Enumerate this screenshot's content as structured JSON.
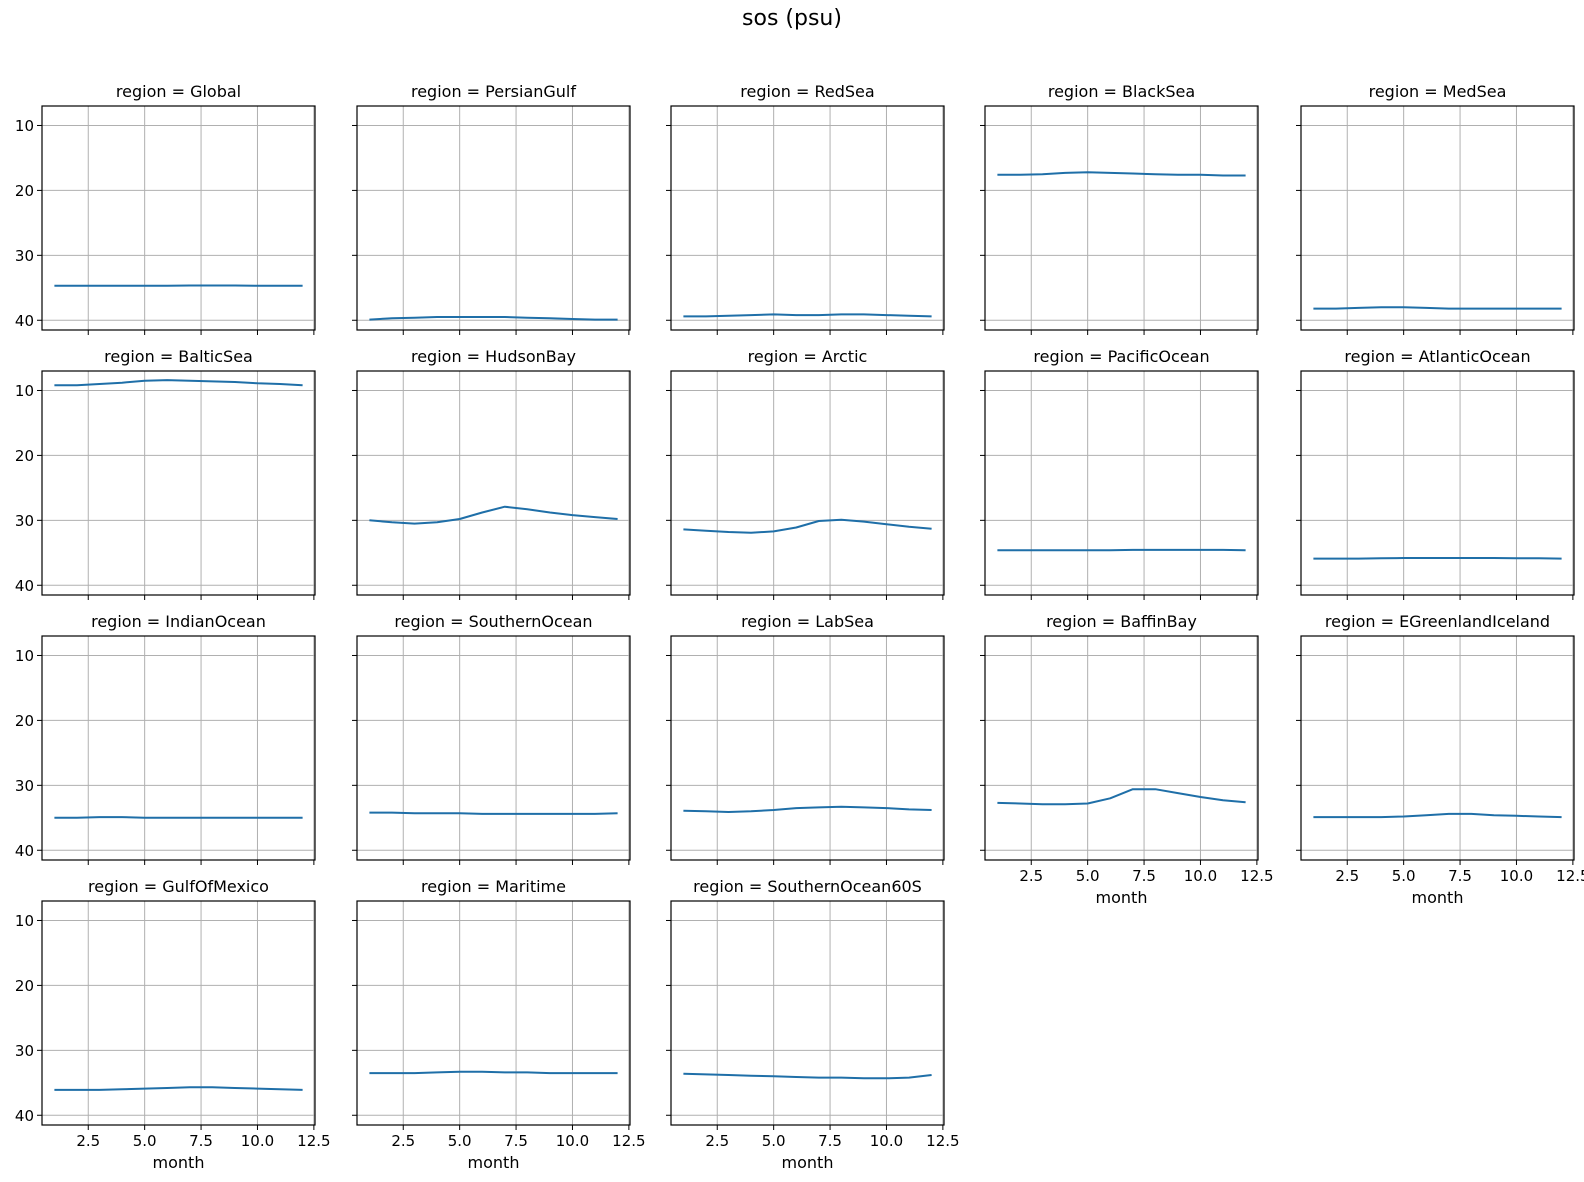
{
  "title": "sos (psu)",
  "chart_data": {
    "type": "line",
    "title": "sos (psu)",
    "facet_prefix": "region = ",
    "columns": 5,
    "xlabel": "month",
    "ylabel": "",
    "xlim": [
      0.45,
      12.55
    ],
    "ylim": [
      41.5,
      7.0
    ],
    "y_inverted": true,
    "xticks": [
      2.5,
      5.0,
      7.5,
      10.0,
      12.5
    ],
    "xtick_labels": [
      "2.5",
      "5.0",
      "7.5",
      "10.0",
      "12.5"
    ],
    "yticks": [
      10,
      20,
      30,
      40
    ],
    "ytick_labels": [
      "10",
      "20",
      "30",
      "40"
    ],
    "grid": true,
    "line_color": "#1f6fa8",
    "x": [
      1,
      2,
      3,
      4,
      5,
      6,
      7,
      8,
      9,
      10,
      11,
      12
    ],
    "series": [
      {
        "name": "Global",
        "values": [
          34.7,
          34.7,
          34.7,
          34.7,
          34.7,
          34.7,
          34.65,
          34.65,
          34.65,
          34.7,
          34.7,
          34.7
        ]
      },
      {
        "name": "PersianGulf",
        "values": [
          39.9,
          39.7,
          39.6,
          39.5,
          39.5,
          39.5,
          39.5,
          39.6,
          39.7,
          39.8,
          39.9,
          39.9
        ]
      },
      {
        "name": "RedSea",
        "values": [
          39.4,
          39.4,
          39.3,
          39.2,
          39.1,
          39.2,
          39.2,
          39.1,
          39.1,
          39.2,
          39.3,
          39.4
        ]
      },
      {
        "name": "BlackSea",
        "values": [
          17.6,
          17.6,
          17.5,
          17.3,
          17.2,
          17.3,
          17.4,
          17.5,
          17.6,
          17.6,
          17.7,
          17.7
        ]
      },
      {
        "name": "MedSea",
        "values": [
          38.2,
          38.2,
          38.1,
          38.0,
          38.0,
          38.1,
          38.2,
          38.2,
          38.2,
          38.2,
          38.2,
          38.2
        ]
      },
      {
        "name": "BalticSea",
        "values": [
          9.2,
          9.2,
          9.0,
          8.8,
          8.5,
          8.4,
          8.5,
          8.6,
          8.7,
          8.9,
          9.0,
          9.2
        ]
      },
      {
        "name": "HudsonBay",
        "values": [
          30.0,
          30.3,
          30.5,
          30.3,
          29.8,
          28.8,
          27.9,
          28.3,
          28.8,
          29.2,
          29.5,
          29.8
        ]
      },
      {
        "name": "Arctic",
        "values": [
          31.4,
          31.6,
          31.8,
          31.9,
          31.7,
          31.1,
          30.1,
          29.9,
          30.2,
          30.6,
          31.0,
          31.3
        ]
      },
      {
        "name": "PacificOcean",
        "values": [
          34.6,
          34.6,
          34.6,
          34.6,
          34.6,
          34.6,
          34.55,
          34.55,
          34.55,
          34.55,
          34.55,
          34.6
        ]
      },
      {
        "name": "AtlanticOcean",
        "values": [
          35.9,
          35.9,
          35.9,
          35.85,
          35.8,
          35.8,
          35.8,
          35.8,
          35.8,
          35.85,
          35.85,
          35.9
        ]
      },
      {
        "name": "IndianOcean",
        "values": [
          35.0,
          35.0,
          34.9,
          34.9,
          35.0,
          35.0,
          35.0,
          35.0,
          35.0,
          35.0,
          35.0,
          35.0
        ]
      },
      {
        "name": "SouthernOcean",
        "values": [
          34.2,
          34.2,
          34.3,
          34.3,
          34.3,
          34.4,
          34.4,
          34.4,
          34.4,
          34.4,
          34.4,
          34.3
        ]
      },
      {
        "name": "LabSea",
        "values": [
          33.9,
          34.0,
          34.1,
          34.0,
          33.8,
          33.5,
          33.4,
          33.3,
          33.4,
          33.5,
          33.7,
          33.8
        ]
      },
      {
        "name": "BaffinBay",
        "values": [
          32.7,
          32.8,
          32.9,
          32.9,
          32.8,
          32.0,
          30.6,
          30.6,
          31.2,
          31.8,
          32.3,
          32.6
        ]
      },
      {
        "name": "EGreenlandIceland",
        "values": [
          34.9,
          34.9,
          34.9,
          34.9,
          34.8,
          34.6,
          34.4,
          34.4,
          34.6,
          34.7,
          34.8,
          34.9
        ]
      },
      {
        "name": "GulfOfMexico",
        "values": [
          36.1,
          36.1,
          36.1,
          36.0,
          35.9,
          35.8,
          35.7,
          35.7,
          35.8,
          35.9,
          36.0,
          36.1
        ]
      },
      {
        "name": "Maritime",
        "values": [
          33.5,
          33.5,
          33.5,
          33.4,
          33.3,
          33.3,
          33.4,
          33.4,
          33.5,
          33.5,
          33.5,
          33.5
        ]
      },
      {
        "name": "SouthernOcean60S",
        "values": [
          33.6,
          33.7,
          33.8,
          33.9,
          34.0,
          34.1,
          34.2,
          34.2,
          34.3,
          34.3,
          34.2,
          33.8
        ]
      }
    ]
  }
}
